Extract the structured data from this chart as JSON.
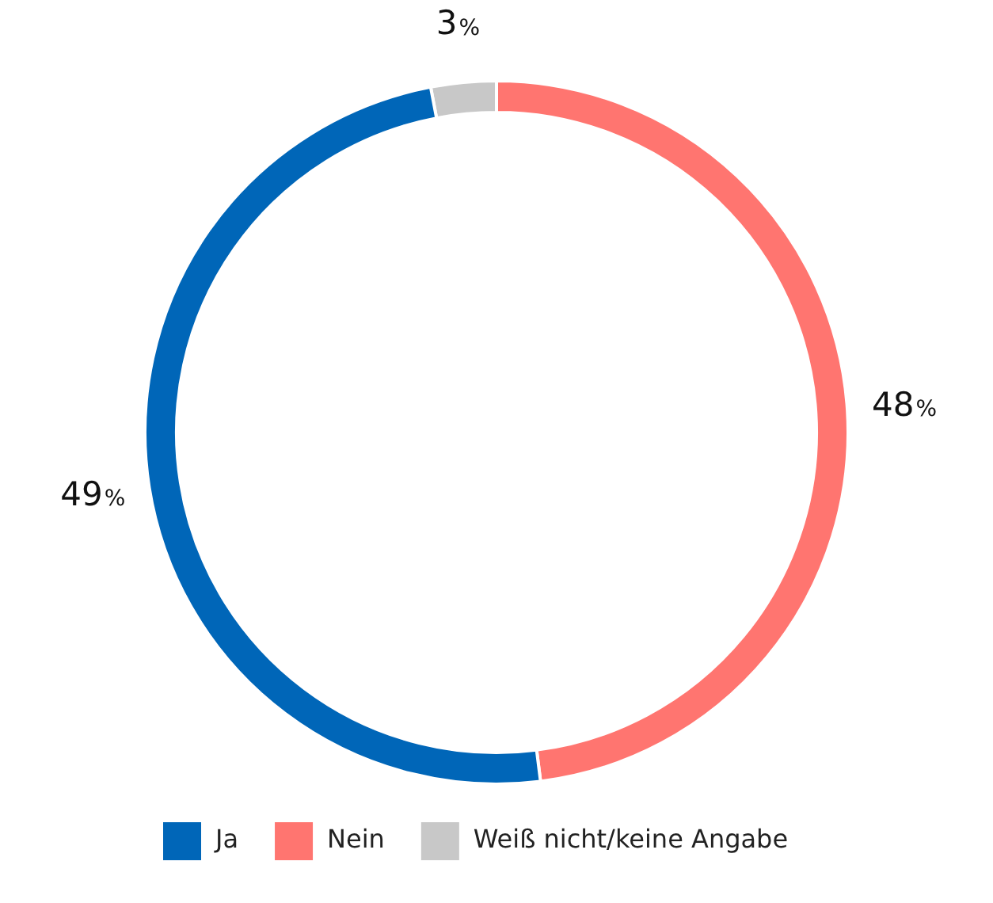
{
  "chart_data": {
    "type": "donut",
    "categories": [
      "Ja",
      "Nein",
      "Weiß nicht/keine Angabe"
    ],
    "values": [
      49,
      48,
      3
    ],
    "value_labels": [
      "49%",
      "48%",
      "3%"
    ],
    "colors": [
      "#0066b8",
      "#ff7570",
      "#c8c8c8"
    ],
    "legend": "bottom"
  }
}
